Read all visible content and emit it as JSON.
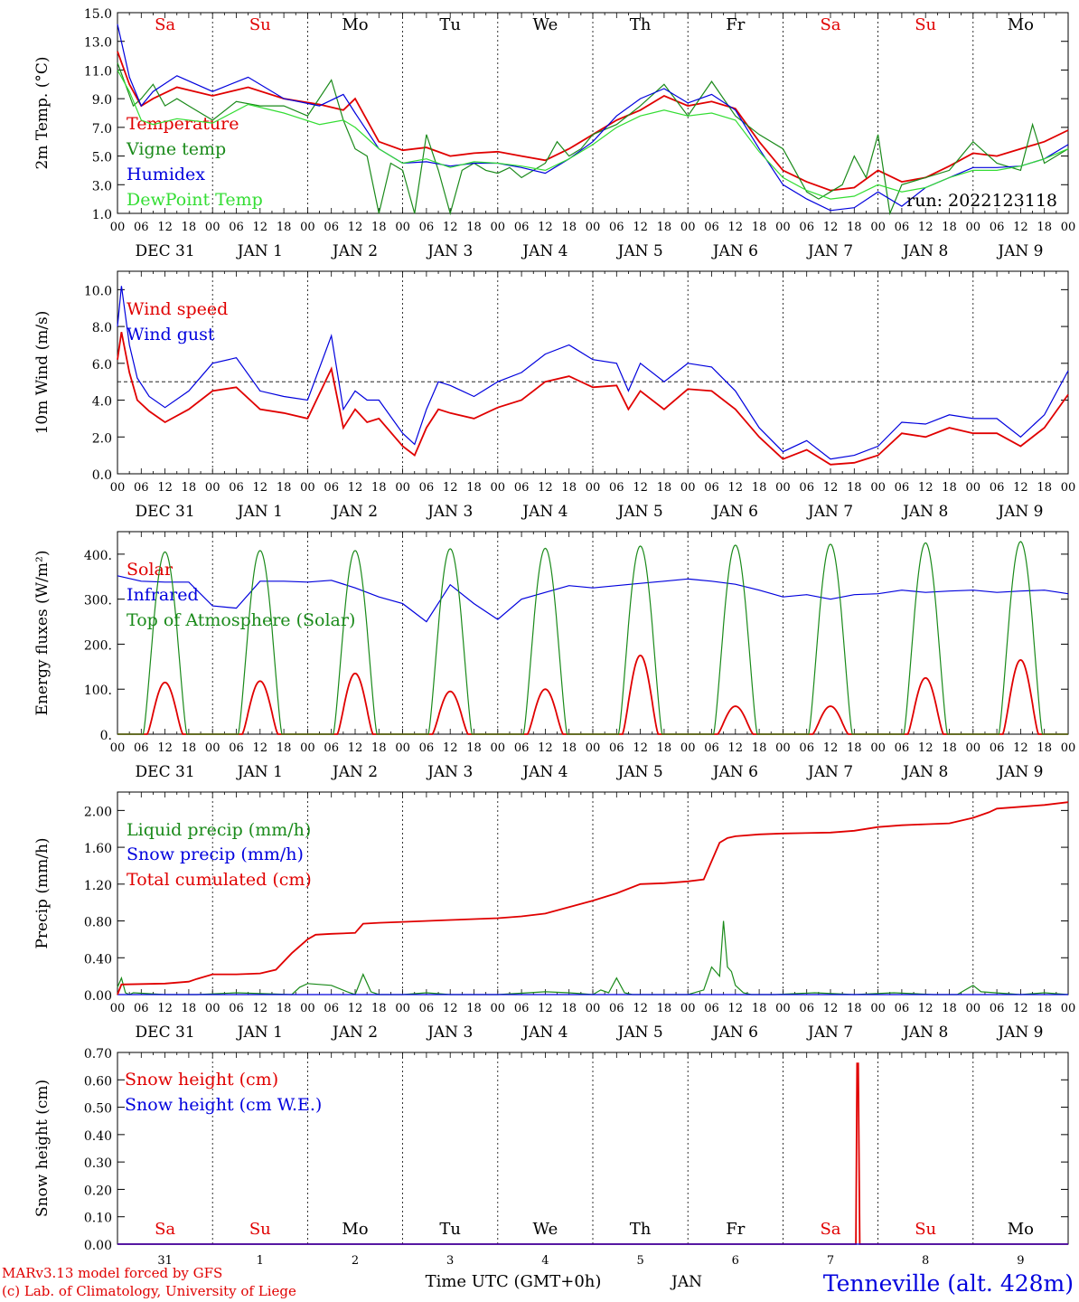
{
  "colors": {
    "red": "#e00000",
    "dkgreen": "#1a8a1a",
    "blue": "#0000dd",
    "lgreen": "#33dd33",
    "black": "#000000"
  },
  "weekdays": [
    "Sa",
    "Su",
    "Mo",
    "Tu",
    "We",
    "Th",
    "Fr",
    "Sa",
    "Su",
    "Mo"
  ],
  "weekday_colors": [
    "red",
    "red",
    "black",
    "black",
    "black",
    "black",
    "black",
    "red",
    "red",
    "black"
  ],
  "hour_labels": [
    "00",
    "06",
    "12",
    "18"
  ],
  "date_labels": [
    "DEC 31",
    "JAN  1",
    "JAN  2",
    "JAN  3",
    "JAN  4",
    "JAN  5",
    "JAN  6",
    "JAN  7",
    "JAN  8",
    "JAN  9"
  ],
  "last_hour_label": "00",
  "bottom_day_numbers": [
    "31",
    "1",
    "2",
    "3",
    "4",
    "5",
    "6",
    "7",
    "8",
    "9"
  ],
  "footer": {
    "credit1": "MARv3.13 model forced by GFS",
    "credit2": "(c) Lab. of Climatology, University of Liege",
    "time_label": "Time UTC (GMT+0h)",
    "month": "JAN",
    "station": "Tenneville (alt. 428m)"
  },
  "chart_data": [
    {
      "type": "line",
      "ylabel": "2m Temp. (°C)",
      "ylim": [
        1,
        15
      ],
      "yticks": [
        "1.0",
        "3.0",
        "5.0",
        "7.0",
        "9.0",
        "11.0",
        "13.0",
        "15.0"
      ],
      "run_label": "run: 2022123118",
      "x_unit": "hours since DEC 31 00 UTC",
      "series": [
        {
          "name": "Temperature",
          "color": "red",
          "x": [
            0,
            3,
            6,
            9,
            15,
            24,
            33,
            42,
            51,
            57,
            60,
            66,
            72,
            78,
            84,
            90,
            96,
            102,
            108,
            114,
            120,
            126,
            132,
            138,
            144,
            150,
            156,
            162,
            168,
            174,
            180,
            186,
            192,
            198,
            204,
            210,
            216,
            222,
            228,
            234,
            240
          ],
          "y": [
            12.3,
            10,
            8.5,
            9,
            9.8,
            9.2,
            9.8,
            9,
            8.6,
            8.2,
            9,
            6,
            5.4,
            5.6,
            5.0,
            5.2,
            5.3,
            5.0,
            4.7,
            5.5,
            6.5,
            7.5,
            8.2,
            9.2,
            8.5,
            8.8,
            8.3,
            6.0,
            4.0,
            3.2,
            2.6,
            2.8,
            4.0,
            3.2,
            3.5,
            4.3,
            5.2,
            5.0,
            5.5,
            6.0,
            6.8
          ]
        },
        {
          "name": "Vigne temp",
          "color": "dkgreen",
          "x": [
            0,
            2,
            4,
            6,
            9,
            12,
            15,
            18,
            24,
            30,
            36,
            42,
            48,
            54,
            57,
            60,
            63,
            66,
            69,
            72,
            75,
            78,
            81,
            84,
            87,
            90,
            93,
            96,
            99,
            102,
            108,
            111,
            114,
            117,
            120,
            126,
            132,
            138,
            144,
            150,
            156,
            162,
            168,
            171,
            174,
            177,
            180,
            183,
            186,
            189,
            192,
            195,
            198,
            204,
            210,
            216,
            222,
            228,
            231,
            234,
            240
          ],
          "y": [
            11.5,
            10,
            8.5,
            9,
            10,
            8.5,
            9,
            8.5,
            7.5,
            8.8,
            8.5,
            8.5,
            7.8,
            10.3,
            7.5,
            5.5,
            5.0,
            1.0,
            4.5,
            4.0,
            1.0,
            6.5,
            4.0,
            1.0,
            4.0,
            4.5,
            4.0,
            3.8,
            4.2,
            3.5,
            4.5,
            6.0,
            5.0,
            5.5,
            6.5,
            7.2,
            8.5,
            10.0,
            7.8,
            10.2,
            7.8,
            6.5,
            5.5,
            4.0,
            2.5,
            2.0,
            2.5,
            3.0,
            5.0,
            3.5,
            6.5,
            1.0,
            3.0,
            3.5,
            4.0,
            6.0,
            4.5,
            4.0,
            7.2,
            4.5,
            5.5
          ]
        },
        {
          "name": "Humidex",
          "color": "blue",
          "x": [
            0,
            3,
            6,
            9,
            15,
            24,
            33,
            42,
            51,
            57,
            60,
            66,
            72,
            78,
            84,
            90,
            96,
            102,
            108,
            114,
            120,
            126,
            132,
            138,
            144,
            150,
            156,
            162,
            168,
            174,
            180,
            186,
            192,
            198,
            204,
            210,
            216,
            222,
            228,
            234,
            240
          ],
          "y": [
            14.2,
            10.5,
            8.5,
            9.5,
            10.6,
            9.5,
            10.5,
            9,
            8.5,
            9.3,
            8,
            5.5,
            4.5,
            4.6,
            4.3,
            4.5,
            4.5,
            4.2,
            3.8,
            4.8,
            6.0,
            7.8,
            9.0,
            9.7,
            8.7,
            9.3,
            8.2,
            5.5,
            3.0,
            2.0,
            1.2,
            1.4,
            2.5,
            1.5,
            2.8,
            3.5,
            4.2,
            4.2,
            4.3,
            4.8,
            5.8
          ]
        },
        {
          "name": "DewPoint Temp",
          "color": "lgreen",
          "x": [
            0,
            3,
            6,
            9,
            15,
            24,
            33,
            42,
            51,
            57,
            60,
            66,
            72,
            78,
            84,
            90,
            96,
            102,
            108,
            114,
            120,
            126,
            132,
            138,
            144,
            150,
            156,
            162,
            168,
            174,
            180,
            186,
            192,
            198,
            204,
            210,
            216,
            222,
            228,
            234,
            240
          ],
          "y": [
            11.0,
            9.5,
            7.5,
            7.2,
            7.6,
            7.3,
            8.6,
            8.0,
            7.2,
            7.5,
            7.0,
            5.5,
            4.5,
            4.8,
            4.2,
            4.6,
            4.5,
            4.3,
            4.0,
            4.8,
            5.8,
            7.0,
            7.8,
            8.2,
            7.8,
            8.0,
            7.5,
            5.3,
            3.5,
            2.6,
            2.0,
            2.2,
            3.0,
            2.5,
            2.8,
            3.5,
            4.0,
            4.0,
            4.3,
            4.8,
            5.5
          ]
        }
      ]
    },
    {
      "type": "line",
      "ylabel": "10m Wind (m/s)",
      "ylim": [
        0,
        11
      ],
      "yticks": [
        "0.0",
        "2.0",
        "4.0",
        "6.0",
        "8.0",
        "10.0"
      ],
      "reference_line": 5.0,
      "series": [
        {
          "name": "Wind speed",
          "color": "red",
          "x": [
            0,
            1,
            3,
            5,
            8,
            12,
            18,
            24,
            30,
            36,
            42,
            48,
            54,
            57,
            60,
            63,
            66,
            72,
            75,
            78,
            81,
            84,
            90,
            96,
            102,
            108,
            114,
            120,
            126,
            129,
            132,
            138,
            144,
            150,
            156,
            162,
            168,
            174,
            180,
            186,
            192,
            198,
            204,
            210,
            216,
            222,
            228,
            234,
            240
          ],
          "y": [
            6.2,
            7.7,
            5.5,
            4.0,
            3.4,
            2.8,
            3.5,
            4.5,
            4.7,
            3.5,
            3.3,
            3.0,
            5.7,
            2.5,
            3.5,
            2.8,
            3.0,
            1.5,
            1.0,
            2.5,
            3.5,
            3.3,
            3.0,
            3.6,
            4.0,
            5.0,
            5.3,
            4.7,
            4.8,
            3.5,
            4.5,
            3.5,
            4.6,
            4.5,
            3.5,
            2.0,
            0.8,
            1.3,
            0.5,
            0.6,
            1.0,
            2.2,
            2.0,
            2.5,
            2.2,
            2.2,
            1.5,
            2.5,
            4.3
          ]
        },
        {
          "name": "Wind gust",
          "color": "blue",
          "x": [
            0,
            1,
            3,
            5,
            8,
            12,
            18,
            24,
            30,
            36,
            42,
            48,
            54,
            57,
            60,
            63,
            66,
            72,
            75,
            78,
            81,
            84,
            90,
            96,
            102,
            108,
            114,
            120,
            126,
            129,
            132,
            138,
            144,
            150,
            156,
            162,
            168,
            174,
            180,
            186,
            192,
            198,
            204,
            210,
            216,
            222,
            228,
            234,
            240
          ],
          "y": [
            8.0,
            10.2,
            7.0,
            5.2,
            4.2,
            3.6,
            4.5,
            6.0,
            6.3,
            4.5,
            4.2,
            4.0,
            7.5,
            3.5,
            4.5,
            4.0,
            4.0,
            2.2,
            1.6,
            3.5,
            5.0,
            4.8,
            4.2,
            5.0,
            5.5,
            6.5,
            7.0,
            6.2,
            6.0,
            4.5,
            6.0,
            5.0,
            6.0,
            5.8,
            4.5,
            2.5,
            1.2,
            1.8,
            0.8,
            1.0,
            1.5,
            2.8,
            2.7,
            3.2,
            3.0,
            3.0,
            2.0,
            3.2,
            5.6
          ]
        }
      ]
    },
    {
      "type": "line",
      "ylabel": "Energy fluxes (W/m²)",
      "ylim": [
        0,
        450
      ],
      "yticks": [
        "0.",
        "100.",
        "200.",
        "300.",
        "400."
      ],
      "series": [
        {
          "name": "Solar",
          "color": "red",
          "peaks": [
            115,
            118,
            135,
            95,
            100,
            175,
            62,
            62,
            125,
            165
          ]
        },
        {
          "name": "Infrared",
          "color": "blue",
          "x": [
            0,
            6,
            12,
            18,
            24,
            30,
            36,
            42,
            48,
            54,
            60,
            66,
            72,
            78,
            84,
            90,
            96,
            102,
            108,
            114,
            120,
            126,
            132,
            138,
            144,
            150,
            156,
            162,
            168,
            174,
            180,
            186,
            192,
            198,
            204,
            210,
            216,
            222,
            228,
            234,
            240
          ],
          "y": [
            352,
            340,
            338,
            338,
            285,
            280,
            340,
            340,
            338,
            342,
            325,
            305,
            290,
            250,
            332,
            290,
            255,
            300,
            315,
            330,
            325,
            330,
            335,
            340,
            345,
            340,
            333,
            320,
            305,
            310,
            300,
            310,
            312,
            320,
            315,
            318,
            320,
            315,
            318,
            320,
            312
          ]
        },
        {
          "name": "Top of Atmosphere (Solar)",
          "color": "dkgreen",
          "peaks": [
            405,
            408,
            408,
            412,
            413,
            418,
            420,
            422,
            425,
            428
          ]
        }
      ]
    },
    {
      "type": "line",
      "ylabel": "Precip (mm/h)",
      "ylim": [
        0,
        2.2
      ],
      "yticks": [
        "0.00",
        "0.40",
        "0.80",
        "1.20",
        "1.60",
        "2.00"
      ],
      "series": [
        {
          "name": "Liquid precip (mm/h)",
          "color": "dkgreen",
          "x": [
            0,
            1,
            2,
            3,
            4,
            12,
            20,
            30,
            44,
            46,
            48,
            54,
            58,
            60,
            62,
            64,
            66,
            72,
            78,
            84,
            96,
            108,
            114,
            120,
            122,
            124,
            126,
            128,
            130,
            136,
            144,
            148,
            150,
            152,
            153,
            154,
            155,
            156,
            158,
            160,
            166,
            176,
            186,
            196,
            206,
            212,
            214,
            216,
            218,
            228,
            234,
            240
          ],
          "y": [
            0.08,
            0.18,
            0.02,
            0.0,
            0.02,
            0.0,
            0.0,
            0.02,
            0.0,
            0.08,
            0.12,
            0.1,
            0.03,
            0.0,
            0.22,
            0.03,
            0.0,
            0.0,
            0.02,
            0.0,
            0.0,
            0.03,
            0.02,
            0.0,
            0.05,
            0.02,
            0.18,
            0.02,
            0.0,
            0.0,
            0.0,
            0.05,
            0.3,
            0.2,
            0.8,
            0.3,
            0.25,
            0.1,
            0.02,
            0.0,
            0.0,
            0.02,
            0.0,
            0.02,
            0.0,
            0.0,
            0.05,
            0.1,
            0.03,
            0.0,
            0.02,
            0.0
          ]
        },
        {
          "name": "Snow precip (mm/h)",
          "color": "blue",
          "x": [
            0,
            240
          ],
          "y": [
            0,
            0
          ]
        },
        {
          "name": "Total cumulated (cm)",
          "color": "red",
          "x": [
            0,
            1,
            12,
            18,
            20,
            24,
            30,
            36,
            40,
            44,
            48,
            50,
            54,
            60,
            62,
            66,
            72,
            84,
            96,
            102,
            108,
            114,
            120,
            126,
            132,
            138,
            144,
            148,
            150,
            152,
            154,
            156,
            162,
            168,
            180,
            186,
            192,
            198,
            204,
            210,
            216,
            220,
            222,
            228,
            234,
            240
          ],
          "y": [
            0.0,
            0.11,
            0.12,
            0.14,
            0.17,
            0.22,
            0.22,
            0.23,
            0.27,
            0.45,
            0.6,
            0.65,
            0.66,
            0.67,
            0.77,
            0.78,
            0.79,
            0.81,
            0.83,
            0.85,
            0.88,
            0.95,
            1.02,
            1.1,
            1.2,
            1.21,
            1.23,
            1.25,
            1.45,
            1.65,
            1.7,
            1.72,
            1.74,
            1.75,
            1.76,
            1.78,
            1.82,
            1.84,
            1.85,
            1.86,
            1.92,
            1.98,
            2.02,
            2.04,
            2.06,
            2.09
          ]
        }
      ]
    },
    {
      "type": "line",
      "ylabel": "Snow height (cm)",
      "ylim": [
        0,
        0.7
      ],
      "yticks": [
        "0.00",
        "0.10",
        "0.20",
        "0.30",
        "0.40",
        "0.50",
        "0.60",
        "0.70"
      ],
      "series": [
        {
          "name": "Snow height (cm)",
          "color": "red",
          "x": [
            0,
            186.4,
            186.7,
            187.0,
            187.4,
            240
          ],
          "y": [
            0,
            0,
            0.66,
            0.66,
            0,
            0
          ]
        },
        {
          "name": "Snow height (cm W.E.)",
          "color": "blue",
          "x": [
            0,
            240
          ],
          "y": [
            0,
            0
          ]
        }
      ]
    }
  ]
}
